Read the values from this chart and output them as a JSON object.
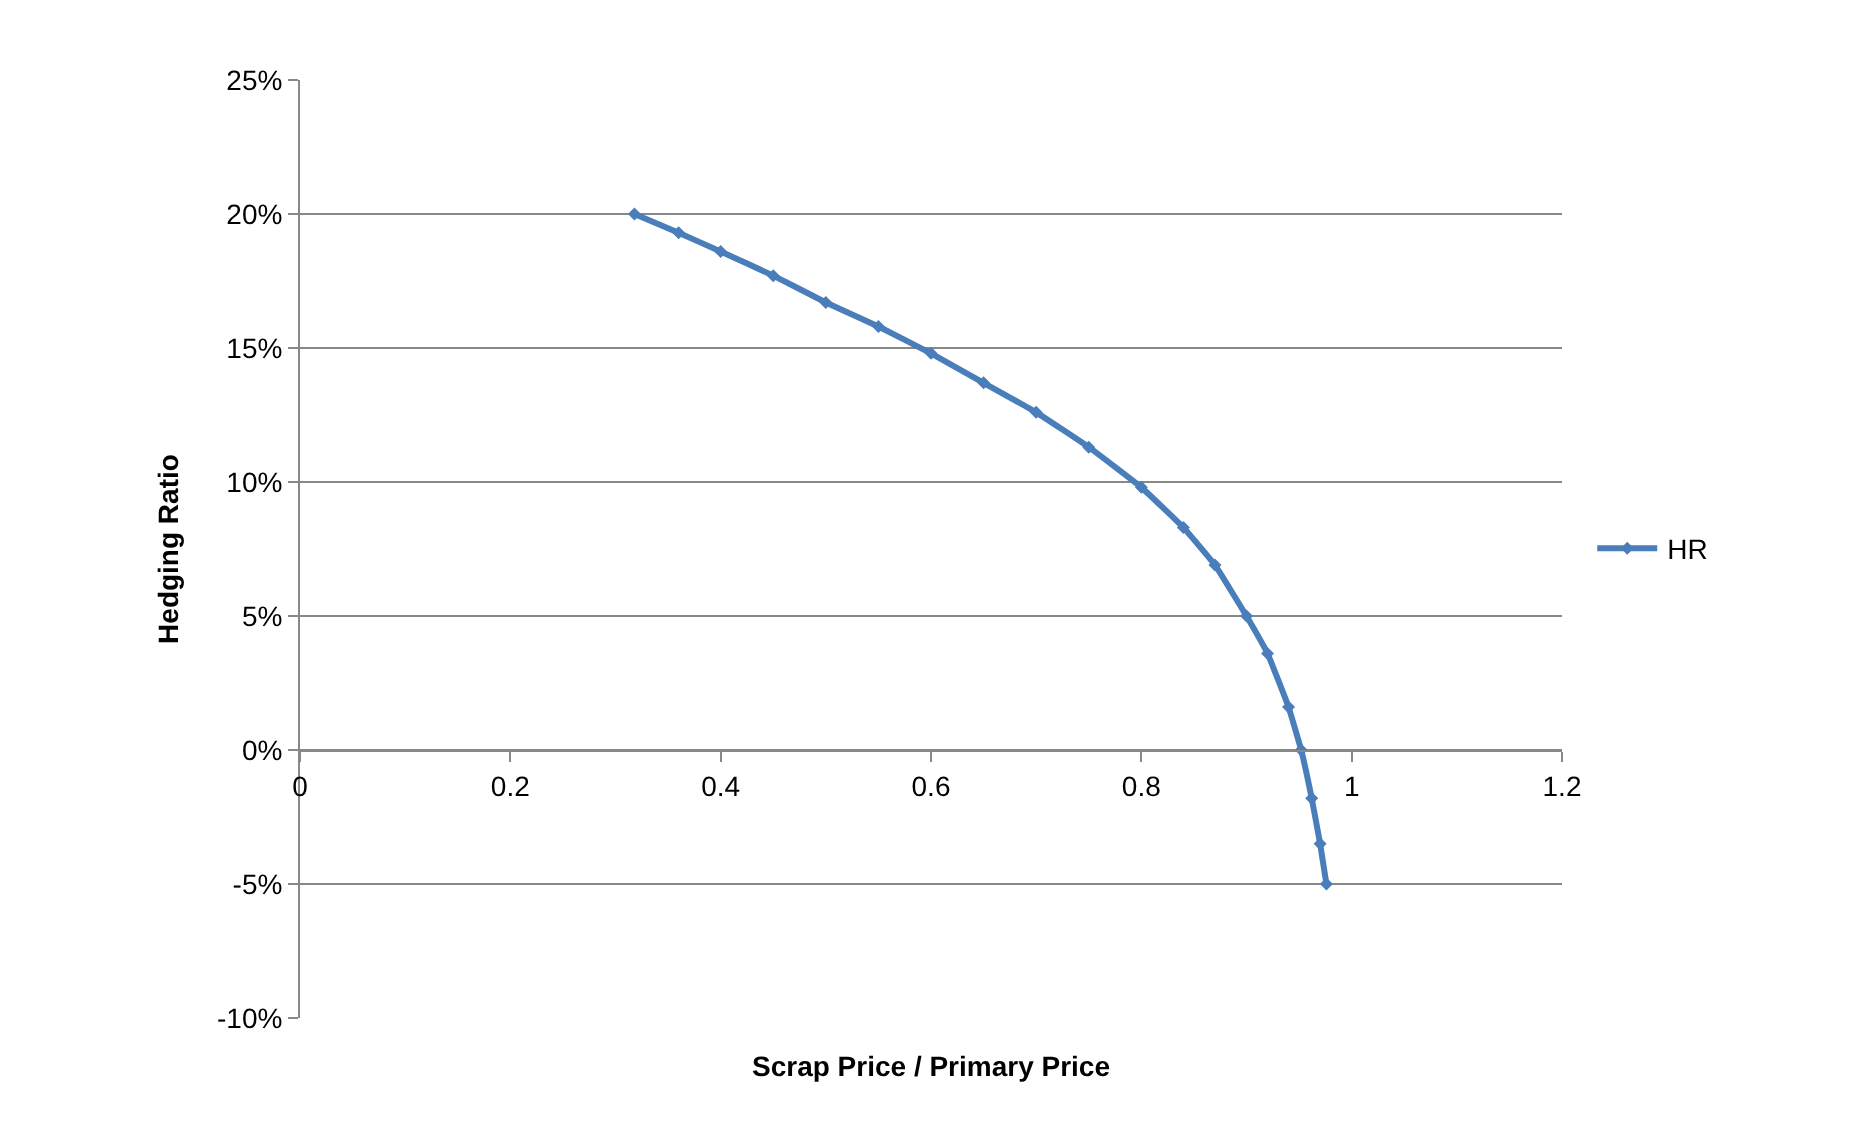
{
  "chart_data": {
    "type": "line",
    "xlabel": "Scrap Price / Primary Price",
    "ylabel": "Hedging Ratio",
    "x": [
      0.318,
      0.36,
      0.4,
      0.45,
      0.5,
      0.55,
      0.6,
      0.65,
      0.7,
      0.75,
      0.8,
      0.84,
      0.87,
      0.9,
      0.92,
      0.94,
      0.952,
      0.962,
      0.97,
      0.976
    ],
    "series": [
      {
        "name": "HR",
        "color": "#4a7ebb",
        "values": [
          20,
          19.3,
          18.6,
          17.7,
          16.7,
          15.8,
          14.8,
          13.7,
          12.6,
          11.3,
          9.8,
          8.3,
          6.9,
          5.0,
          3.6,
          1.6,
          0,
          -1.8,
          -3.5,
          -5
        ]
      }
    ],
    "xlim": [
      0,
      1.2
    ],
    "xticks": [
      0,
      0.2,
      0.4,
      0.6,
      0.8,
      1,
      1.2
    ],
    "ylim": [
      -10,
      25
    ],
    "yticks": [
      {
        "value": -10,
        "label": "-10%"
      },
      {
        "value": -5,
        "label": "-5%"
      },
      {
        "value": 0,
        "label": "0%"
      },
      {
        "value": 5,
        "label": "5%"
      },
      {
        "value": 10,
        "label": "10%"
      },
      {
        "value": 15,
        "label": "15%"
      },
      {
        "value": 20,
        "label": "20%"
      },
      {
        "value": 25,
        "label": "25%"
      }
    ],
    "grid": "y",
    "legend": "right",
    "marker": "diamond",
    "line_style": "solid"
  }
}
